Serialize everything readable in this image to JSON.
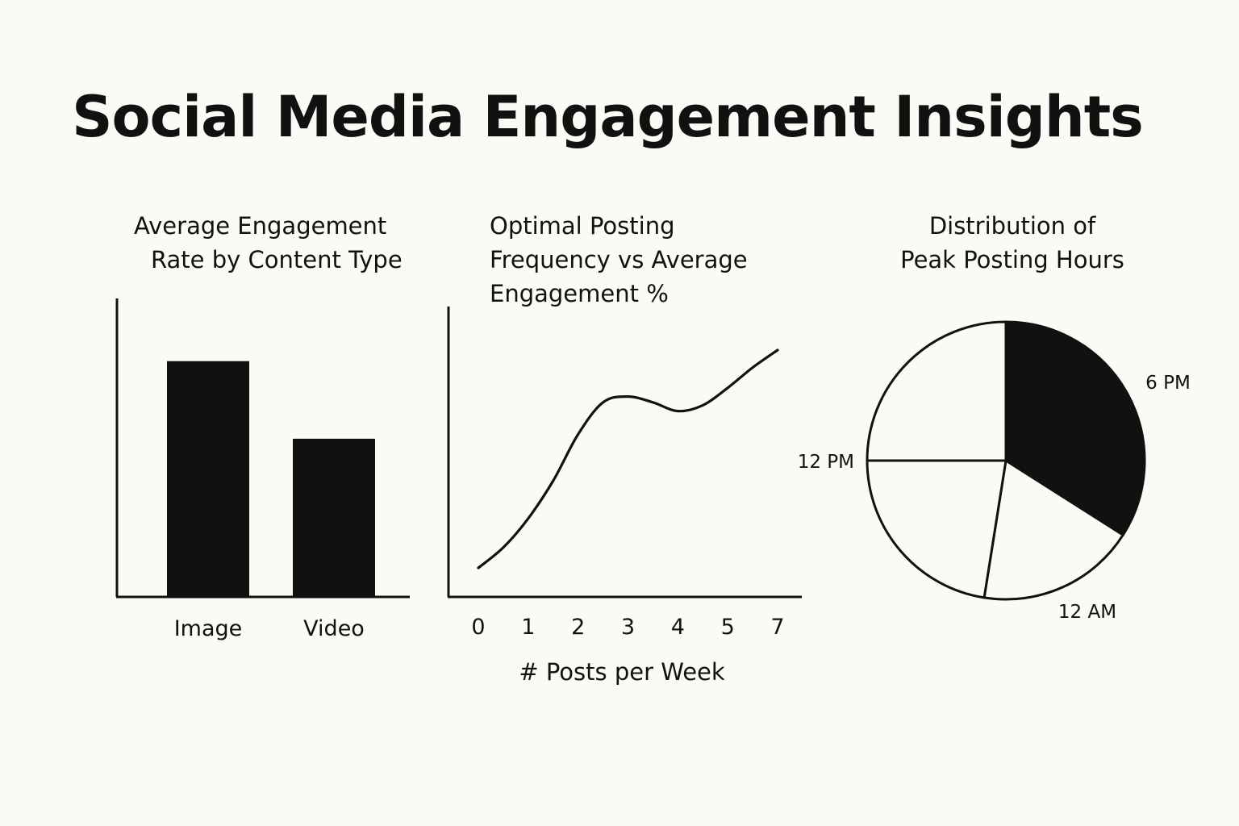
{
  "title": "Social Media Engagement Insights",
  "colors": {
    "background": "#fcfaf5",
    "ink": "#111111",
    "slice_fill_light": "#fcfaf5"
  },
  "chart_data": [
    {
      "type": "bar",
      "title_lines": [
        "Average Engagement",
        "Rate by Content Type"
      ],
      "categories": [
        "Image",
        "Video"
      ],
      "values": [
        79,
        53
      ],
      "ylim": [
        0,
        100
      ],
      "xlabel": "",
      "ylabel": "",
      "grid": false,
      "bar_color": "#111111"
    },
    {
      "type": "line",
      "title_lines": [
        "Optimal Posting",
        "Frequency vs  Average",
        "Engagement %"
      ],
      "x_ticks": [
        "0",
        "1",
        "2",
        "3",
        "4",
        "5",
        "7"
      ],
      "x": [
        0,
        0.5,
        1,
        1.5,
        2,
        2.5,
        3,
        3.5,
        4,
        4.5,
        5,
        5.5,
        6
      ],
      "y": [
        10,
        17,
        27,
        40,
        56,
        67,
        69,
        67,
        64,
        66,
        72,
        79,
        85
      ],
      "xlim": [
        -0.5,
        6.5
      ],
      "ylim": [
        0,
        100
      ],
      "xlabel": "# Posts per Week",
      "ylabel": "",
      "grid": false,
      "line_color": "#111111"
    },
    {
      "type": "pie",
      "title_lines": [
        "Distribution of",
        "Peak Posting Hours"
      ],
      "slices": [
        {
          "label": "6 PM",
          "value": 34,
          "fill": "#111111"
        },
        {
          "label": "12 AM",
          "value": 18.5,
          "fill": "#fcfaf5"
        },
        {
          "label": "",
          "value": 22.5,
          "fill": "#fcfaf5"
        },
        {
          "label": "12 PM",
          "value": 25,
          "fill": "#fcfaf5"
        }
      ],
      "start_angle_deg": 0
    }
  ]
}
